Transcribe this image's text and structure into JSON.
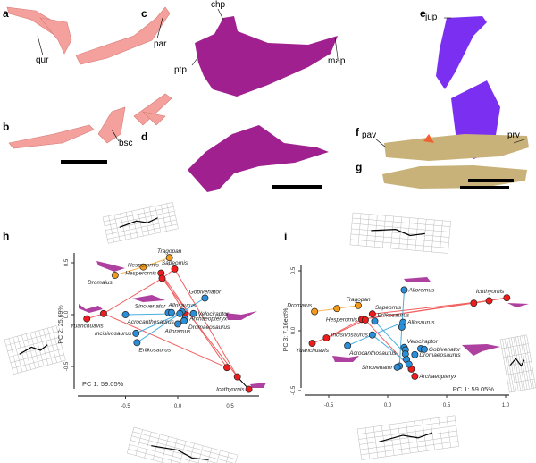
{
  "panels": {
    "a": "a",
    "b": "b",
    "c": "c",
    "d": "d",
    "e": "e",
    "f": "f",
    "g": "g",
    "h": "h",
    "i": "i"
  },
  "labels": {
    "qur": "qur",
    "par": "par",
    "bsc": "bsc",
    "chp": "chp",
    "ptp": "ptp",
    "map": "map",
    "jup": "jup",
    "pav": "pav",
    "prv": "prv"
  },
  "colors": {
    "pink": "#f4a09c",
    "magenta": "#a0208f",
    "purple": "#7b2ff0",
    "tan": "#c8b27a",
    "red": "#ee1c1c",
    "orange": "#f39a1a",
    "blue": "#2a8fd8",
    "redline": "#f06060",
    "blueline": "#4aaee0",
    "orangeline": "#f5b04a"
  },
  "chart_data": [
    {
      "type": "scatter",
      "panel": "h",
      "xlabel": "PC 1: 59.05%",
      "ylabel": "PC 2: 25.69%",
      "xlim": [
        -0.95,
        0.75
      ],
      "ylim": [
        -0.8,
        0.6
      ],
      "xticks": [
        "-0.5",
        "0.0",
        "0.5"
      ],
      "xtickvals": [
        -0.5,
        0,
        0.5
      ],
      "yticks": [
        "0.5",
        "0.0",
        "-0.5"
      ],
      "ytickvals": [
        0.5,
        0,
        -0.5
      ],
      "points": [
        {
          "label": "Tragopan",
          "group": "orange",
          "x": -0.08,
          "y": 0.55,
          "anchor": "above"
        },
        {
          "label": "Hesperornis",
          "group": "orange",
          "x": -0.33,
          "y": 0.46,
          "anchor": ""
        },
        {
          "label": "Dromaius",
          "group": "orange",
          "x": -0.6,
          "y": 0.38,
          "anchor": "below-left"
        },
        {
          "label": "Sapeornis",
          "group": "red",
          "x": -0.03,
          "y": 0.44,
          "anchor": "above"
        },
        {
          "label": "Hesperornis",
          "group": "red",
          "x": -0.16,
          "y": 0.4,
          "anchor": "left"
        },
        {
          "label": "",
          "group": "red",
          "x": -0.15,
          "y": 0.35,
          "anchor": ""
        },
        {
          "label": "Yuanchuavis",
          "group": "red",
          "x": -0.87,
          "y": -0.04,
          "anchor": "below"
        },
        {
          "label": "",
          "group": "red",
          "x": -0.71,
          "y": 0.01,
          "anchor": ""
        },
        {
          "label": "",
          "group": "red",
          "x": 0.07,
          "y": 0.0,
          "anchor": ""
        },
        {
          "label": "",
          "group": "red",
          "x": 0.47,
          "y": -0.51,
          "anchor": ""
        },
        {
          "label": "",
          "group": "red",
          "x": 0.57,
          "y": -0.6,
          "anchor": ""
        },
        {
          "label": "Ichthyornis",
          "group": "red",
          "x": 0.68,
          "y": -0.72,
          "anchor": "left"
        },
        {
          "label": "Gobivenator",
          "group": "blue",
          "x": 0.26,
          "y": 0.16,
          "anchor": "above"
        },
        {
          "label": "Sinovenator",
          "group": "blue",
          "x": -0.09,
          "y": 0.02,
          "anchor": "above-left"
        },
        {
          "label": "",
          "group": "blue",
          "x": -0.06,
          "y": 0.02,
          "anchor": ""
        },
        {
          "label": "Acrocanthosaurus",
          "group": "blue",
          "x": -0.5,
          "y": 0.0,
          "anchor": "below-right"
        },
        {
          "label": "Allosaurus",
          "group": "blue",
          "x": 0.04,
          "y": 0.03,
          "anchor": "above"
        },
        {
          "label": "",
          "group": "blue",
          "x": 0.02,
          "y": 0.01,
          "anchor": ""
        },
        {
          "label": "Velociraptor",
          "group": "blue",
          "x": 0.15,
          "y": 0.01,
          "anchor": "right"
        },
        {
          "label": "Archaeopteryx",
          "group": "blue",
          "x": 0.07,
          "y": -0.04,
          "anchor": "right"
        },
        {
          "label": "Dromaeosaurus",
          "group": "blue",
          "x": 0.06,
          "y": -0.06,
          "anchor": "right-low"
        },
        {
          "label": "Alioramus",
          "group": "blue",
          "x": 0.0,
          "y": -0.09,
          "anchor": "below"
        },
        {
          "label": "Incisivosaurus",
          "group": "blue",
          "x": -0.4,
          "y": -0.18,
          "anchor": "left"
        },
        {
          "label": "Erlikosaurus",
          "group": "blue",
          "x": -0.39,
          "y": -0.27,
          "anchor": "below-right"
        }
      ],
      "edges": [
        [
          "orange",
          2,
          1
        ],
        [
          "orange",
          1,
          0
        ],
        [
          "red",
          6,
          7
        ],
        [
          "red",
          7,
          5
        ],
        [
          "red",
          5,
          3
        ],
        [
          "red",
          7,
          9
        ],
        [
          "red",
          4,
          9
        ],
        [
          "red",
          5,
          10
        ],
        [
          "red",
          3,
          10
        ],
        [
          "red",
          4,
          8
        ],
        [
          "black",
          10,
          11
        ],
        [
          "blue",
          15,
          17
        ],
        [
          "blue",
          22,
          17
        ],
        [
          "blue",
          23,
          17
        ],
        [
          "blue",
          12,
          17
        ]
      ]
    },
    {
      "type": "scatter",
      "panel": "i",
      "xlabel": "PC 1: 59.05%",
      "ylabel": "PC 3: 7.16ect%",
      "xlim": [
        -0.7,
        1.05
      ],
      "ylim": [
        -0.55,
        0.55
      ],
      "xticks": [
        "-0.5",
        "0.0",
        "0.5",
        "1.0"
      ],
      "xtickvals": [
        -0.5,
        0,
        0.5,
        1.0
      ],
      "yticks": [
        "0.5",
        "0.0",
        "-0.5"
      ],
      "ytickvals": [
        0.5,
        0,
        -0.5
      ],
      "points": [
        {
          "label": "Dromaius",
          "group": "orange",
          "x": -0.62,
          "y": 0.16,
          "anchor": "above-left"
        },
        {
          "label": "",
          "group": "orange",
          "x": -0.43,
          "y": 0.185,
          "anchor": ""
        },
        {
          "label": "Tragopan",
          "group": "orange",
          "x": -0.25,
          "y": 0.21,
          "anchor": "above"
        },
        {
          "label": "Ichthyornis",
          "group": "red",
          "x": 1.01,
          "y": 0.275,
          "anchor": "above-left"
        },
        {
          "label": "",
          "group": "red",
          "x": 0.86,
          "y": 0.25,
          "anchor": ""
        },
        {
          "label": "",
          "group": "red",
          "x": 0.73,
          "y": 0.23,
          "anchor": ""
        },
        {
          "label": "Sapeornis",
          "group": "red",
          "x": -0.13,
          "y": 0.14,
          "anchor": "above-right"
        },
        {
          "label": "Hesperornis",
          "group": "red",
          "x": -0.22,
          "y": 0.095,
          "anchor": "left"
        },
        {
          "label": "",
          "group": "red",
          "x": -0.19,
          "y": 0.09,
          "anchor": ""
        },
        {
          "label": "Yuanchuavis",
          "group": "red",
          "x": -0.64,
          "y": -0.105,
          "anchor": "below"
        },
        {
          "label": "",
          "group": "red",
          "x": -0.52,
          "y": -0.06,
          "anchor": ""
        },
        {
          "label": "",
          "group": "red",
          "x": 0.2,
          "y": -0.32,
          "anchor": ""
        },
        {
          "label": "Archaeopteryx",
          "group": "red",
          "x": 0.23,
          "y": -0.38,
          "anchor": "right"
        },
        {
          "label": "Alioramus",
          "group": "blue",
          "x": 0.14,
          "y": 0.34,
          "anchor": "right"
        },
        {
          "label": "Erlikosaurus",
          "group": "blue",
          "x": -0.11,
          "y": 0.08,
          "anchor": "above-right"
        },
        {
          "label": "Allosaurus",
          "group": "blue",
          "x": 0.13,
          "y": 0.07,
          "anchor": "right"
        },
        {
          "label": "",
          "group": "blue",
          "x": 0.12,
          "y": 0.03,
          "anchor": ""
        },
        {
          "label": "Incisivosaurus",
          "group": "blue",
          "x": -0.13,
          "y": -0.035,
          "anchor": "left"
        },
        {
          "label": "Acrocanthosaurus",
          "group": "blue",
          "x": -0.34,
          "y": -0.125,
          "anchor": "below-right"
        },
        {
          "label": "Velociraptor",
          "group": "blue",
          "x": 0.14,
          "y": -0.14,
          "anchor": "above-right"
        },
        {
          "label": "",
          "group": "blue",
          "x": 0.15,
          "y": -0.16,
          "anchor": ""
        },
        {
          "label": "",
          "group": "blue",
          "x": 0.15,
          "y": -0.195,
          "anchor": ""
        },
        {
          "label": "",
          "group": "blue",
          "x": 0.16,
          "y": -0.24,
          "anchor": ""
        },
        {
          "label": "",
          "group": "blue",
          "x": 0.28,
          "y": -0.15,
          "anchor": ""
        },
        {
          "label": "Gobivenator",
          "group": "blue",
          "x": 0.31,
          "y": -0.155,
          "anchor": "right"
        },
        {
          "label": "Dromaeosaurus",
          "group": "blue",
          "x": 0.23,
          "y": -0.2,
          "anchor": "right"
        },
        {
          "label": "",
          "group": "blue",
          "x": 0.18,
          "y": -0.28,
          "anchor": ""
        },
        {
          "label": "",
          "group": "blue",
          "x": 0.1,
          "y": -0.295,
          "anchor": ""
        },
        {
          "label": "Sinovenator",
          "group": "blue",
          "x": 0.08,
          "y": -0.305,
          "anchor": "left"
        }
      ],
      "edges": [
        [
          "orange",
          0,
          1
        ],
        [
          "orange",
          1,
          2
        ],
        [
          "red",
          9,
          10
        ],
        [
          "red",
          10,
          7
        ],
        [
          "red",
          10,
          8
        ],
        [
          "red",
          7,
          5
        ],
        [
          "red",
          8,
          11
        ],
        [
          "red",
          6,
          4
        ],
        [
          "red",
          5,
          4
        ],
        [
          "red",
          4,
          3
        ],
        [
          "red",
          7,
          3
        ],
        [
          "red",
          11,
          12
        ],
        [
          "blue",
          13,
          16
        ],
        [
          "blue",
          17,
          15
        ],
        [
          "blue",
          18,
          17
        ],
        [
          "blue",
          14,
          21
        ],
        [
          "blue",
          17,
          26
        ],
        [
          "blue",
          16,
          27
        ]
      ]
    }
  ]
}
